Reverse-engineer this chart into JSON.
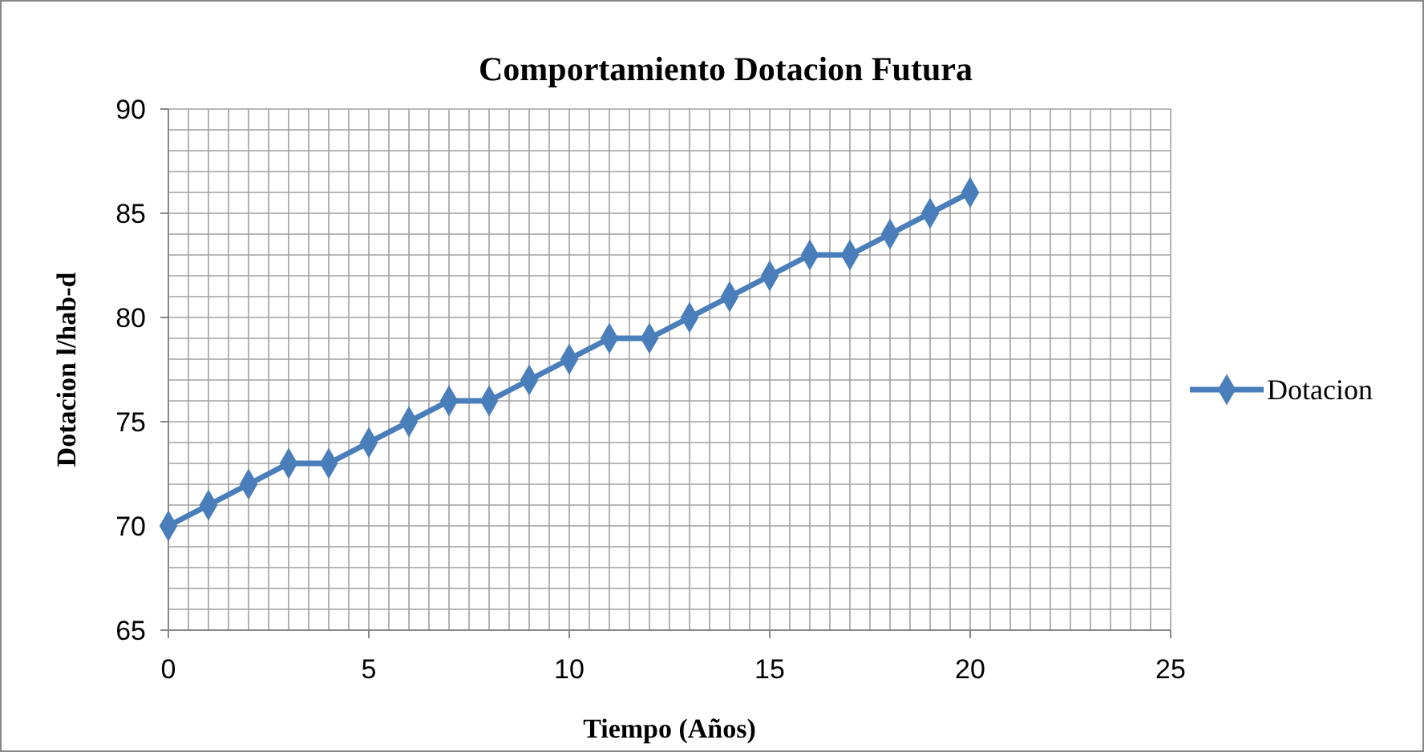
{
  "chart_data": {
    "type": "line",
    "title": "Comportamiento  Dotacion Futura",
    "xlabel": "Tiempo (Años)",
    "ylabel": "Dotacion l/hab-d",
    "x": [
      0,
      1,
      2,
      3,
      4,
      5,
      6,
      7,
      8,
      9,
      10,
      11,
      12,
      13,
      14,
      15,
      16,
      17,
      18,
      19,
      20
    ],
    "series": [
      {
        "name": "Dotacion",
        "color": "#4a7ebb",
        "values": [
          70,
          71,
          72,
          73,
          73,
          74,
          75,
          76,
          76,
          77,
          78,
          79,
          79,
          80,
          81,
          82,
          83,
          83,
          84,
          85,
          86
        ]
      }
    ],
    "xlim": [
      0,
      25
    ],
    "xticks": [
      0,
      {
        "value": 0.5,
        "label": null
      },
      {
        "value": 1,
        "label": null
      },
      {
        "value": 1.5,
        "label": null
      },
      {
        "value": 2,
        "label": null
      },
      {
        "value": 2.5,
        "label": null
      },
      {
        "value": 3,
        "label": null
      },
      {
        "value": 3.5,
        "label": null
      },
      {
        "value": 4,
        "label": null
      },
      {
        "value": 4.5,
        "label": null
      },
      5,
      {
        "value": 5.5,
        "label": null
      },
      {
        "value": 6,
        "label": null
      },
      {
        "value": 6.5,
        "label": null
      },
      {
        "value": 7,
        "label": null
      },
      {
        "value": 7.5,
        "label": null
      },
      {
        "value": 8,
        "label": null
      },
      {
        "value": 8.5,
        "label": null
      },
      {
        "value": 9,
        "label": null
      },
      {
        "value": 9.5,
        "label": null
      },
      10,
      {
        "value": 10.5,
        "label": null
      },
      {
        "value": 11,
        "label": null
      },
      {
        "value": 11.5,
        "label": null
      },
      {
        "value": 12,
        "label": null
      },
      {
        "value": 12.5,
        "label": null
      },
      {
        "value": 13,
        "label": null
      },
      {
        "value": 13.5,
        "label": null
      },
      {
        "value": 14,
        "label": null
      },
      {
        "value": 14.5,
        "label": null
      },
      15,
      {
        "value": 15.5,
        "label": null
      },
      {
        "value": 16,
        "label": null
      },
      {
        "value": 16.5,
        "label": null
      },
      {
        "value": 17,
        "label": null
      },
      {
        "value": 17.5,
        "label": null
      },
      {
        "value": 18,
        "label": null
      },
      {
        "value": 18.5,
        "label": null
      },
      {
        "value": 19,
        "label": null
      },
      {
        "value": 19.5,
        "label": null
      },
      20,
      {
        "value": 20.5,
        "label": null
      },
      {
        "value": 21,
        "label": null
      },
      {
        "value": 21.5,
        "label": null
      },
      {
        "value": 22,
        "label": null
      },
      {
        "value": 22.5,
        "label": null
      },
      {
        "value": 23,
        "label": null
      },
      {
        "value": 23.5,
        "label": null
      },
      {
        "value": 24,
        "label": null
      },
      {
        "value": 24.5,
        "label": null
      },
      25
    ],
    "ylim": [
      65,
      90
    ],
    "yticks": [
      65,
      {
        "value": 66,
        "label": null
      },
      {
        "value": 67,
        "label": null
      },
      {
        "value": 68,
        "label": null
      },
      {
        "value": 69,
        "label": null
      },
      70,
      {
        "value": 71,
        "label": null
      },
      {
        "value": 72,
        "label": null
      },
      {
        "value": 73,
        "label": null
      },
      {
        "value": 74,
        "label": null
      },
      75,
      {
        "value": 76,
        "label": null
      },
      {
        "value": 77,
        "label": null
      },
      {
        "value": 78,
        "label": null
      },
      {
        "value": 79,
        "label": null
      },
      80,
      {
        "value": 81,
        "label": null
      },
      {
        "value": 82,
        "label": null
      },
      {
        "value": 83,
        "label": null
      },
      {
        "value": 84,
        "label": null
      },
      85,
      {
        "value": 86,
        "label": null
      },
      {
        "value": 87,
        "label": null
      },
      {
        "value": 88,
        "label": null
      },
      {
        "value": 89,
        "label": null
      },
      90
    ],
    "grid": true,
    "legend": "right",
    "marker": "diamond",
    "line_style": "solid"
  }
}
